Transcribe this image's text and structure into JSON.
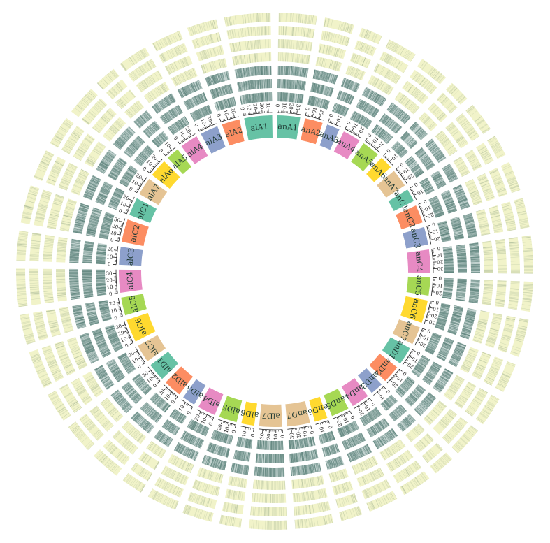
{
  "chromosomes": [
    {
      "name": "alA1",
      "color": "#66c2a5",
      "ticks": [
        "0",
        "10",
        "20",
        "30",
        "40"
      ]
    },
    {
      "name": "alA2",
      "color": "#fc8d62",
      "ticks": [
        "0",
        "10",
        "20"
      ]
    },
    {
      "name": "alA3",
      "color": "#8da0cb",
      "ticks": [
        "0",
        "10",
        "20"
      ]
    },
    {
      "name": "alA4",
      "color": "#e78ac3",
      "ticks": [
        "0",
        "10",
        "20"
      ]
    },
    {
      "name": "alA5",
      "color": "#a6d854",
      "ticks": [
        "0",
        "10"
      ]
    },
    {
      "name": "alA6",
      "color": "#ffd92f",
      "ticks": [
        "0",
        "10",
        "20"
      ]
    },
    {
      "name": "alA7",
      "color": "#e5c494",
      "ticks": [
        "0",
        "10",
        "20"
      ]
    },
    {
      "name": "alC1",
      "color": "#66c2a5",
      "ticks": [
        "0",
        "10",
        "20"
      ]
    },
    {
      "name": "alC2",
      "color": "#fc8d62",
      "ticks": [
        "0",
        "10",
        "20",
        "30"
      ]
    },
    {
      "name": "alC3",
      "color": "#8da0cb",
      "ticks": [
        "0",
        "10",
        "20"
      ]
    },
    {
      "name": "alC4",
      "color": "#e78ac3",
      "ticks": [
        "0",
        "10",
        "20",
        "30"
      ]
    },
    {
      "name": "alC5",
      "color": "#a6d854",
      "ticks": [
        "0",
        "10",
        "20"
      ]
    },
    {
      "name": "alC6",
      "color": "#ffd92f",
      "ticks": [
        "0",
        "10",
        "20",
        "30"
      ]
    },
    {
      "name": "alC7",
      "color": "#e5c494",
      "ticks": [
        "0",
        "10",
        "20"
      ]
    },
    {
      "name": "alD1",
      "color": "#66c2a5",
      "ticks": [
        "0",
        "10",
        "20"
      ]
    },
    {
      "name": "alD2",
      "color": "#fc8d62",
      "ticks": [
        "0",
        "10",
        "20"
      ]
    },
    {
      "name": "alD3",
      "color": "#8da0cb",
      "ticks": [
        "0",
        "10"
      ]
    },
    {
      "name": "alD4",
      "color": "#e78ac3",
      "ticks": [
        "0",
        "10",
        "20"
      ]
    },
    {
      "name": "alD5",
      "color": "#a6d854",
      "ticks": [
        "0",
        "10",
        "20"
      ]
    },
    {
      "name": "alD6",
      "color": "#ffd92f",
      "ticks": [
        "0",
        "10"
      ]
    },
    {
      "name": "alD7",
      "color": "#e5c494",
      "ticks": [
        "0",
        "10",
        "20",
        "30"
      ]
    },
    {
      "name": "anD7",
      "color": "#e5c494",
      "ticks": [
        "0",
        "10",
        "20",
        "30"
      ]
    },
    {
      "name": "anD6",
      "color": "#ffd92f",
      "ticks": [
        "0",
        "10"
      ]
    },
    {
      "name": "anD5",
      "color": "#a6d854",
      "ticks": [
        "0",
        "10",
        "20"
      ]
    },
    {
      "name": "anD4",
      "color": "#e78ac3",
      "ticks": [
        "0",
        "10",
        "20"
      ]
    },
    {
      "name": "anD3",
      "color": "#8da0cb",
      "ticks": [
        "0",
        "10"
      ]
    },
    {
      "name": "anD2",
      "color": "#fc8d62",
      "ticks": [
        "0",
        "10",
        "20"
      ]
    },
    {
      "name": "anD1",
      "color": "#66c2a5",
      "ticks": [
        "0",
        "10",
        "20"
      ]
    },
    {
      "name": "anC7",
      "color": "#e5c494",
      "ticks": [
        "0",
        "10",
        "20"
      ]
    },
    {
      "name": "anC6",
      "color": "#ffd92f",
      "ticks": [
        "0",
        "10",
        "20",
        "30"
      ]
    },
    {
      "name": "anC5",
      "color": "#a6d854",
      "ticks": [
        "0",
        "10",
        "20"
      ]
    },
    {
      "name": "anC4",
      "color": "#e78ac3",
      "ticks": [
        "0",
        "10",
        "20",
        "30"
      ]
    },
    {
      "name": "anC3",
      "color": "#8da0cb",
      "ticks": [
        "0",
        "10",
        "20"
      ]
    },
    {
      "name": "anC2",
      "color": "#fc8d62",
      "ticks": [
        "0",
        "10",
        "20"
      ]
    },
    {
      "name": "anC1",
      "color": "#66c2a5",
      "ticks": [
        "0",
        "10"
      ]
    },
    {
      "name": "anA7",
      "color": "#e5c494",
      "ticks": [
        "0",
        "10",
        "20"
      ]
    },
    {
      "name": "anA6",
      "color": "#ffd92f",
      "ticks": [
        "0",
        "10"
      ]
    },
    {
      "name": "anA5",
      "color": "#a6d854",
      "ticks": [
        "0",
        "10",
        "20"
      ]
    },
    {
      "name": "anA4",
      "color": "#e78ac3",
      "ticks": [
        "0",
        "10",
        "20"
      ]
    },
    {
      "name": "anA3",
      "color": "#8da0cb",
      "ticks": [
        "0",
        "10"
      ]
    },
    {
      "name": "anA2",
      "color": "#fc8d62",
      "ticks": [
        "0",
        "10",
        "20"
      ]
    },
    {
      "name": "anA1",
      "color": "#66c2a5",
      "ticks": [
        "0",
        "10",
        "20",
        "30"
      ]
    }
  ],
  "tracks": [
    {
      "style": "dark",
      "base_color": "#c3d3d0",
      "line_color": "#5f857d"
    },
    {
      "style": "dark",
      "base_color": "#c3d3d0",
      "line_color": "#5f857d"
    },
    {
      "style": "dark",
      "base_color": "#c3d3d0",
      "line_color": "#5f857d"
    },
    {
      "style": "light",
      "base_color": "#f1f3c9",
      "line_color": "#9aad8e"
    },
    {
      "style": "light",
      "base_color": "#f1f3c9",
      "line_color": "#9aad8e"
    },
    {
      "style": "light",
      "base_color": "#f1f3c9",
      "line_color": "#9aad8e"
    },
    {
      "style": "light",
      "base_color": "#f1f3c9",
      "line_color": "#9aad8e"
    }
  ]
}
